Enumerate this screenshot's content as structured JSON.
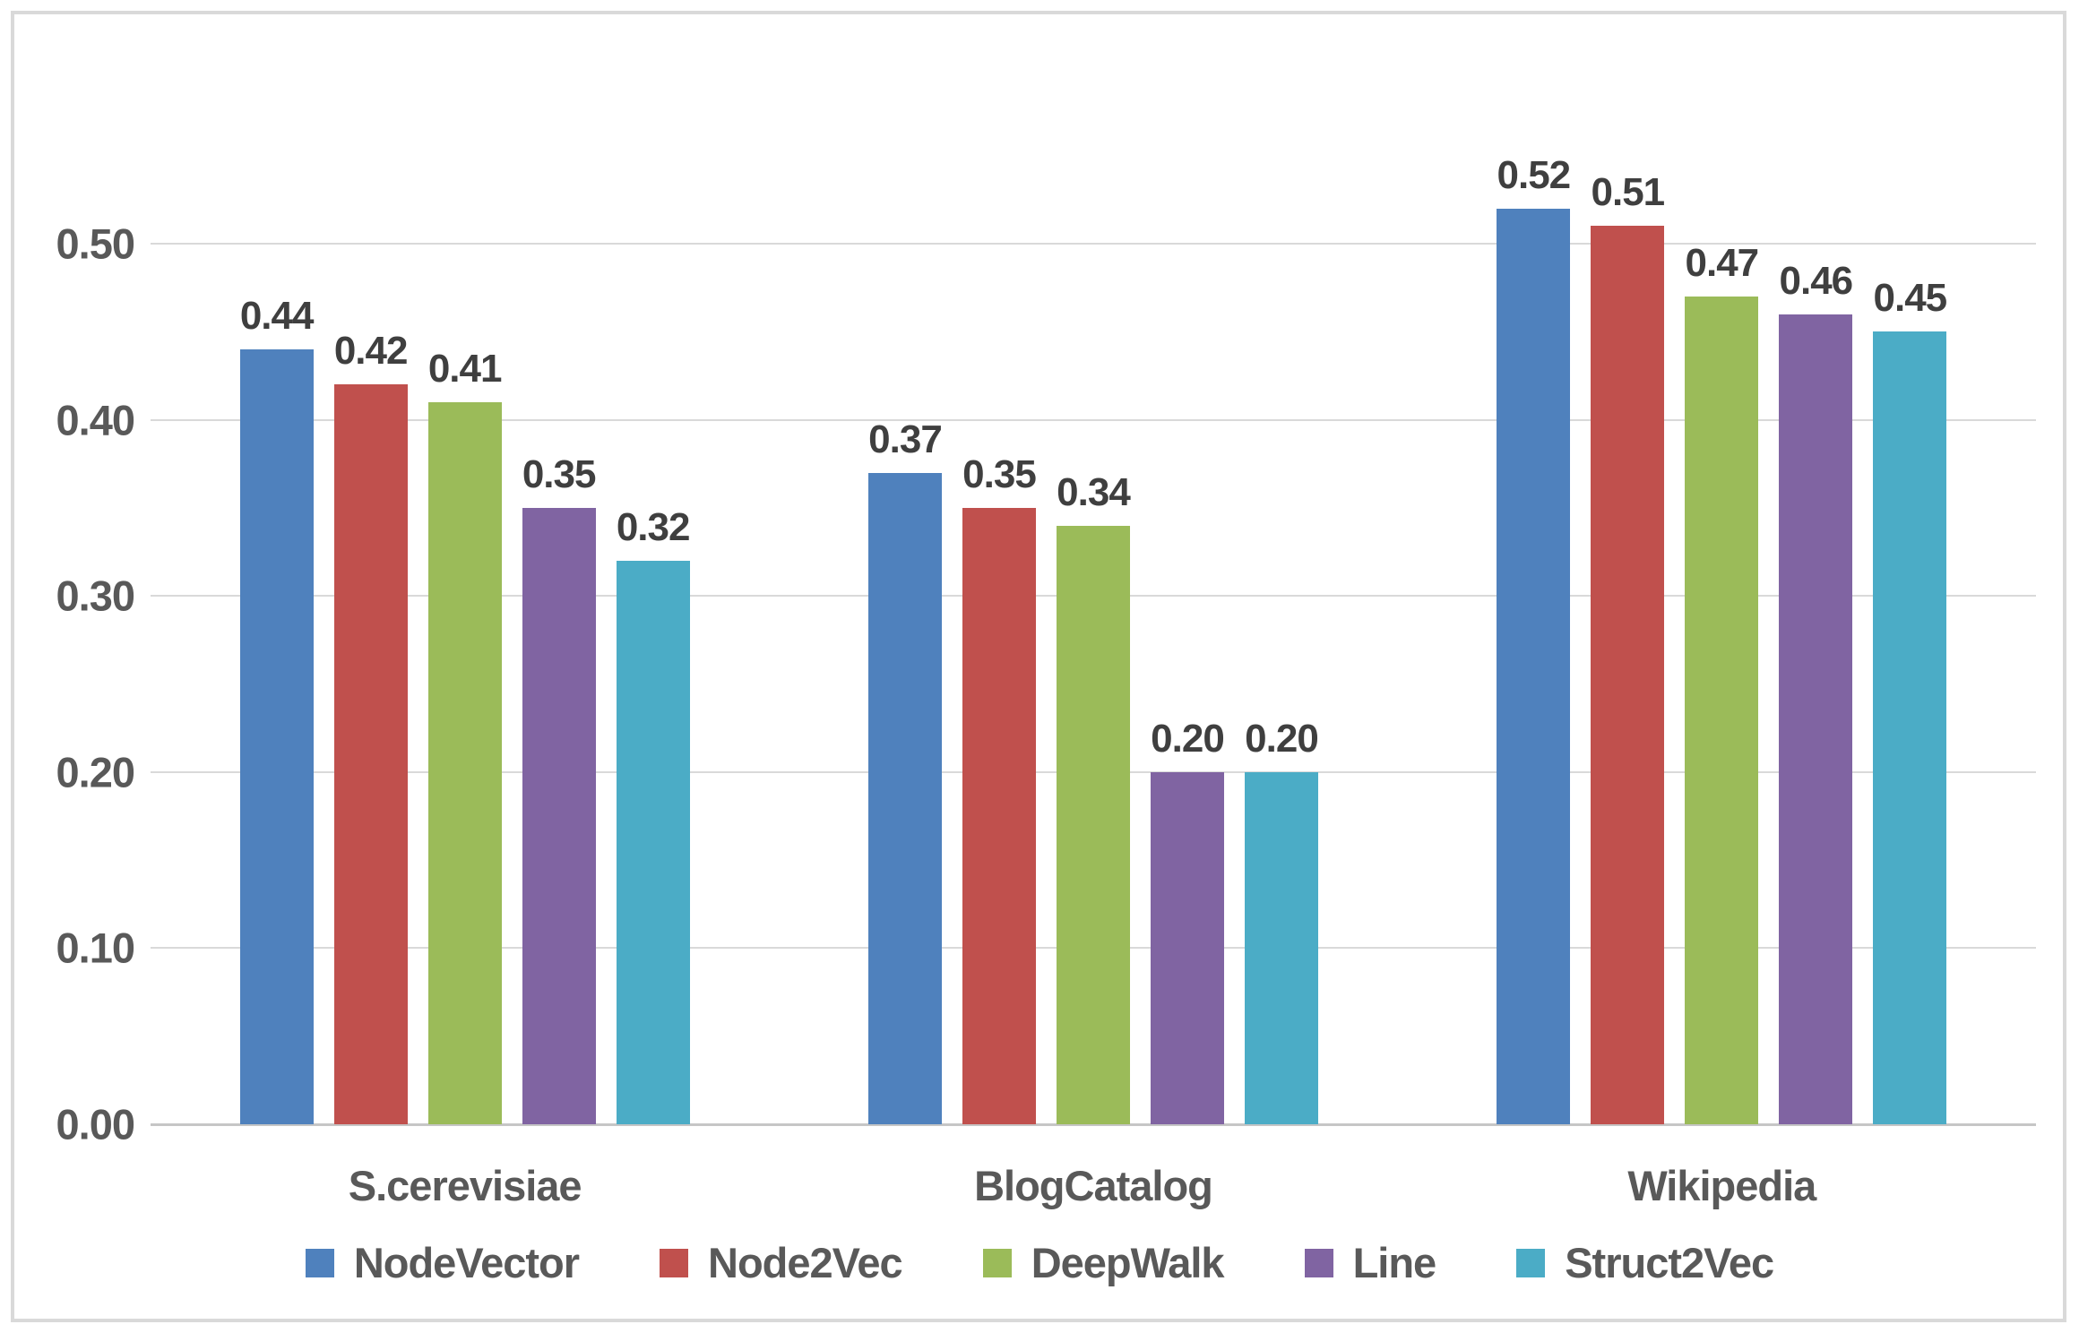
{
  "colors": {
    "frame_border": "#D9D9D9",
    "gridline": "#D9D9D9",
    "axis_line": "#C6C6C6",
    "value_label": "#3F3F3F",
    "tick_label": "#595959",
    "category_label": "#595959",
    "legend_label": "#595959",
    "background": "#FFFFFF"
  },
  "chart_data": {
    "type": "bar",
    "title": "",
    "xlabel": "",
    "ylabel": "",
    "categories": [
      "S.cerevisiae",
      "BlogCatalog",
      "Wikipedia"
    ],
    "series": [
      {
        "name": "NodeVector",
        "color": "#4F81BD",
        "values": [
          0.44,
          0.37,
          0.52
        ]
      },
      {
        "name": "Node2Vec",
        "color": "#C0504D",
        "values": [
          0.42,
          0.35,
          0.51
        ]
      },
      {
        "name": "DeepWalk",
        "color": "#9BBB59",
        "values": [
          0.41,
          0.34,
          0.47
        ]
      },
      {
        "name": "Line",
        "color": "#8064A2",
        "values": [
          0.35,
          0.2,
          0.46
        ]
      },
      {
        "name": "Struct2Vec",
        "color": "#4BACC6",
        "values": [
          0.32,
          0.2,
          0.45
        ]
      }
    ],
    "value_label_decimals": 2,
    "yticks": [
      0.0,
      0.1,
      0.2,
      0.3,
      0.4,
      0.5
    ],
    "ytick_labels": [
      "0.00",
      "0.10",
      "0.20",
      "0.30",
      "0.40",
      "0.50"
    ],
    "ylim": [
      0,
      0.55
    ],
    "grid": "horizontal",
    "legend_position": "bottom",
    "legend": [
      "NodeVector",
      "Node2Vec",
      "DeepWalk",
      "Line",
      "Struct2Vec"
    ]
  }
}
